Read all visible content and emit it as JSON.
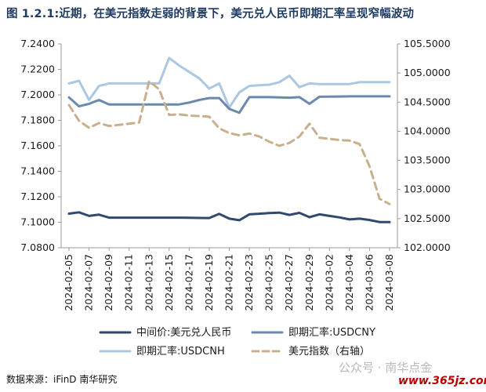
{
  "title": "图 1.2.1:近期，在美元指数走弱的背景下，美元兑人民币即期汇率呈现窄幅波动",
  "source": "数据来源：iFinD 南华研究",
  "watermark": "公众号 · 南华点金",
  "website": "www.365jz.com",
  "colors": {
    "series_mid": "#30496e",
    "series_cny": "#6a89ad",
    "series_cnh": "#abc7e2",
    "series_dxy": "#c9b08c",
    "axis": "#9a9a9a",
    "title": "#1f3b62"
  },
  "chart_data": {
    "type": "line",
    "x": [
      "2024-02-05",
      "2024-02-06",
      "2024-02-07",
      "2024-02-08",
      "2024-02-09",
      "2024-02-10",
      "2024-02-11",
      "2024-02-12",
      "2024-02-13",
      "2024-02-14",
      "2024-02-15",
      "2024-02-16",
      "2024-02-17",
      "2024-02-18",
      "2024-02-19",
      "2024-02-20",
      "2024-02-21",
      "2024-02-22",
      "2024-02-23",
      "2024-02-24",
      "2024-02-25",
      "2024-02-26",
      "2024-02-27",
      "2024-02-28",
      "2024-02-29",
      "2024-03-01",
      "2024-03-02",
      "2024-03-03",
      "2024-03-04",
      "2024-03-05",
      "2024-03-06",
      "2024-03-07",
      "2024-03-08"
    ],
    "tick_labels": [
      "2024-02-05",
      "2024-02-07",
      "2024-02-09",
      "2024-02-11",
      "2024-02-13",
      "2024-02-15",
      "2024-02-17",
      "2024-02-19",
      "2024-02-21",
      "2024-02-23",
      "2024-02-25",
      "2024-02-27",
      "2024-02-29",
      "2024-03-02",
      "2024-03-04",
      "2024-03-06",
      "2024-03-08"
    ],
    "series": [
      {
        "name": "中间价:美元兑人民币",
        "axis": "left",
        "style": "solid",
        "width": 3,
        "values": [
          7.1068,
          7.1078,
          7.105,
          7.106,
          7.1036,
          7.1036,
          7.1036,
          7.1036,
          7.1036,
          7.1036,
          7.1036,
          7.1036,
          7.1035,
          7.1034,
          7.1033,
          7.1066,
          7.1028,
          7.1016,
          7.1062,
          7.1067,
          7.1072,
          7.1076,
          7.1058,
          7.1074,
          7.104,
          7.1062,
          7.105,
          7.1038,
          7.1022,
          7.1028,
          7.1018,
          7.1002,
          7.1001
        ]
      },
      {
        "name": "即期汇率:USDCNY",
        "axis": "left",
        "style": "solid",
        "width": 3,
        "values": [
          7.198,
          7.191,
          7.193,
          7.196,
          7.1925,
          7.1925,
          7.1925,
          7.1925,
          7.1925,
          7.1925,
          7.1925,
          7.1925,
          7.194,
          7.196,
          7.1975,
          7.1975,
          7.189,
          7.186,
          7.1982,
          7.1982,
          7.1982,
          7.198,
          7.1978,
          7.1982,
          7.193,
          7.1985,
          7.1986,
          7.1987,
          7.1988,
          7.1988,
          7.1988,
          7.1988,
          7.1988
        ]
      },
      {
        "name": "即期汇率:USDCNH",
        "axis": "left",
        "style": "solid",
        "width": 3,
        "values": [
          7.209,
          7.211,
          7.196,
          7.207,
          7.209,
          7.209,
          7.209,
          7.209,
          7.209,
          7.209,
          7.229,
          7.223,
          7.218,
          7.213,
          7.205,
          7.209,
          7.19,
          7.202,
          7.207,
          7.2075,
          7.208,
          7.21,
          7.215,
          7.206,
          7.209,
          7.2085,
          7.2085,
          7.2085,
          7.2085,
          7.21,
          7.21,
          7.21,
          7.21
        ]
      },
      {
        "name": "美元指数（右轴）",
        "axis": "right",
        "style": "dashed",
        "width": 3,
        "values": [
          104.45,
          104.18,
          104.06,
          104.14,
          104.09,
          104.11,
          104.13,
          104.15,
          104.86,
          104.72,
          104.28,
          104.29,
          104.27,
          104.26,
          104.25,
          104.05,
          103.97,
          103.93,
          103.96,
          103.91,
          103.82,
          103.75,
          103.8,
          103.91,
          104.13,
          103.89,
          103.87,
          103.85,
          103.84,
          103.78,
          103.4,
          102.84,
          102.75
        ]
      }
    ],
    "y_left": {
      "min": 7.08,
      "max": 7.24,
      "ticks": [
        "7.0800",
        "7.1000",
        "7.1200",
        "7.1400",
        "7.1600",
        "7.1800",
        "7.2000",
        "7.2200",
        "7.2400"
      ]
    },
    "y_right": {
      "min": 102.0,
      "max": 105.5,
      "ticks": [
        "102.0000",
        "102.5000",
        "103.0000",
        "103.5000",
        "104.0000",
        "104.5000",
        "105.0000",
        "105.5000"
      ]
    },
    "grid": false,
    "legend_position": "bottom"
  }
}
